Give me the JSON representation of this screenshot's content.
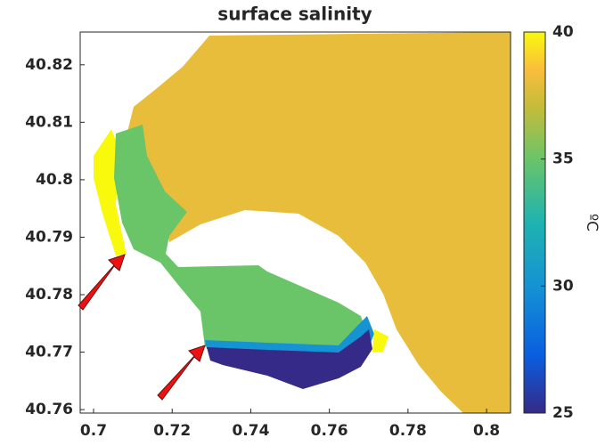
{
  "chart_data": {
    "type": "map",
    "title": "surface salinity",
    "values": [
      38,
      40,
      35,
      30,
      25,
      40
    ],
    "xlim": [
      0.6966,
      0.8061
    ],
    "xticks": [
      0.7,
      0.72,
      0.74,
      0.76,
      0.78,
      0.8
    ],
    "ylim": [
      40.7594,
      40.8257
    ],
    "yticks": [
      40.76,
      40.77,
      40.78,
      40.79,
      40.8,
      40.81,
      40.82
    ],
    "colorbar": {
      "lim": [
        25,
        40
      ],
      "ticks": [
        25,
        30,
        35,
        40
      ],
      "label": "ºC"
    }
  }
}
